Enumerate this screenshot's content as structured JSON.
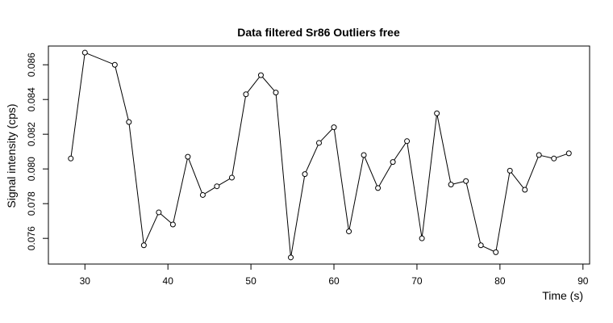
{
  "chart_data": {
    "type": "line",
    "title": "Data filtered Sr86 Outliers free",
    "xlabel": "Time (s)",
    "ylabel": "Signal intensity (cps)",
    "xlim": [
      25.6,
      90.8
    ],
    "ylim": [
      0.07452,
      0.08708
    ],
    "xticks": [
      30,
      40,
      50,
      60,
      70,
      80,
      90
    ],
    "xtick_labels": [
      "30",
      "40",
      "50",
      "60",
      "70",
      "80",
      "90"
    ],
    "yticks": [
      0.076,
      0.078,
      0.08,
      0.082,
      0.084,
      0.086
    ],
    "ytick_labels": [
      "0.076",
      "0.078",
      "0.080",
      "0.082",
      "0.084",
      "0.086"
    ],
    "grid": false,
    "series": [
      {
        "points": [
          [
            28.3,
            0.0806
          ],
          [
            30.0,
            0.0867
          ],
          [
            33.6,
            0.086
          ],
          [
            35.3,
            0.0827
          ],
          [
            37.1,
            0.0756
          ],
          [
            38.9,
            0.0775
          ],
          [
            40.6,
            0.0768
          ],
          [
            42.4,
            0.0807
          ],
          [
            44.2,
            0.0785
          ],
          [
            45.9,
            0.079
          ],
          [
            47.7,
            0.0795
          ],
          [
            49.4,
            0.0843
          ],
          [
            51.2,
            0.0854
          ],
          [
            53.0,
            0.0844
          ],
          [
            54.8,
            0.0749
          ],
          [
            56.5,
            0.0797
          ],
          [
            58.2,
            0.0815
          ],
          [
            60.0,
            0.0824
          ],
          [
            61.8,
            0.0764
          ],
          [
            63.6,
            0.0808
          ],
          [
            65.3,
            0.0789
          ],
          [
            67.1,
            0.0804
          ],
          [
            68.8,
            0.0816
          ],
          [
            70.6,
            0.076
          ],
          [
            72.4,
            0.0832
          ],
          [
            74.1,
            0.0791
          ],
          [
            75.9,
            0.0793
          ],
          [
            77.7,
            0.0756
          ],
          [
            79.5,
            0.0752
          ],
          [
            81.2,
            0.0799
          ],
          [
            83.0,
            0.0788
          ],
          [
            84.7,
            0.0808
          ],
          [
            86.5,
            0.0806
          ],
          [
            88.3,
            0.0809
          ]
        ]
      }
    ]
  }
}
